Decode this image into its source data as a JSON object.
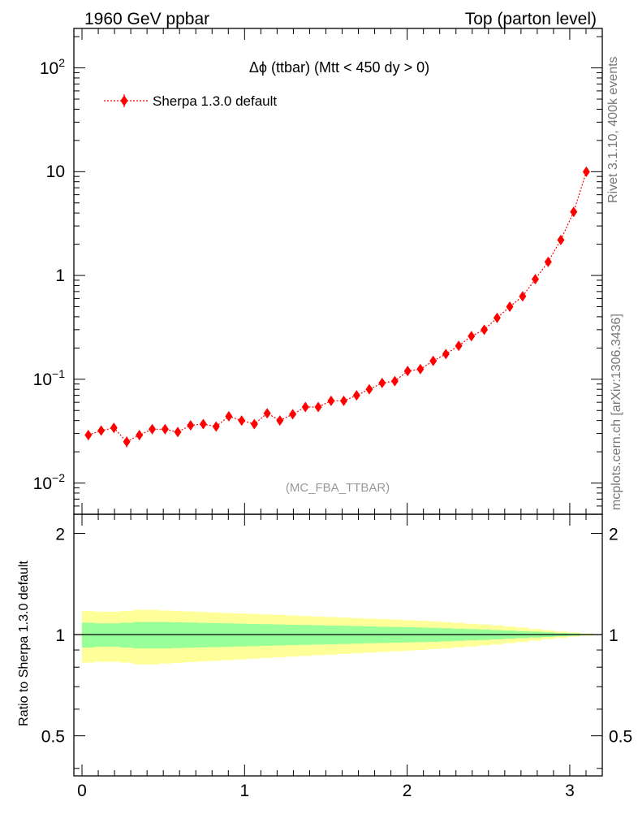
{
  "header": {
    "left": "1960 GeV ppbar",
    "right": "Top (parton level)"
  },
  "plot_title": "Δϕ (ttbar) (Mtt < 450 dy > 0)",
  "legend_label": "Sherpa 1.3.0 default",
  "analysis_tag": "(MC_FBA_TTBAR)",
  "side_texts": {
    "rivet": "Rivet 3.1.10,  400k events",
    "mcplots": "mcplots.cern.ch [arXiv:1306.3436]"
  },
  "ratio_ylabel": "Ratio to Sherpa 1.3.0 default",
  "colors": {
    "series": "#ff0000",
    "band_inner": "#99ff99",
    "band_outer": "#ffff99"
  },
  "chart_data": [
    {
      "type": "line",
      "title": "Δϕ (ttbar) (Mtt < 450 dy > 0)",
      "xlabel": "",
      "ylabel": "",
      "y_scale": "log",
      "xlim": [
        -0.05,
        3.2
      ],
      "ylim": [
        0.005,
        240
      ],
      "y_tick_labels": [
        "10^-2",
        "10^-1",
        "1",
        "10",
        "10^2"
      ],
      "legend": "top-left",
      "series": [
        {
          "name": "Sherpa 1.3.0 default",
          "x": [
            0.039,
            0.118,
            0.196,
            0.275,
            0.353,
            0.432,
            0.511,
            0.589,
            0.668,
            0.746,
            0.825,
            0.903,
            0.982,
            1.06,
            1.139,
            1.217,
            1.296,
            1.374,
            1.453,
            1.532,
            1.61,
            1.689,
            1.767,
            1.846,
            1.924,
            2.003,
            2.081,
            2.16,
            2.238,
            2.317,
            2.395,
            2.474,
            2.553,
            2.631,
            2.71,
            2.788,
            2.867,
            2.945,
            3.024,
            3.102
          ],
          "values": [
            0.029,
            0.032,
            0.034,
            0.025,
            0.029,
            0.033,
            0.033,
            0.031,
            0.036,
            0.037,
            0.035,
            0.044,
            0.04,
            0.037,
            0.047,
            0.04,
            0.046,
            0.054,
            0.054,
            0.062,
            0.062,
            0.07,
            0.08,
            0.092,
            0.096,
            0.12,
            0.125,
            0.15,
            0.175,
            0.21,
            0.26,
            0.3,
            0.39,
            0.5,
            0.63,
            0.92,
            1.35,
            2.2,
            4.1,
            10.0
          ],
          "errors": [
            0.003,
            0.003,
            0.003,
            0.003,
            0.003,
            0.003,
            0.003,
            0.003,
            0.003,
            0.003,
            0.003,
            0.004,
            0.003,
            0.003,
            0.004,
            0.003,
            0.003,
            0.004,
            0.004,
            0.004,
            0.004,
            0.004,
            0.005,
            0.005,
            0.005,
            0.006,
            0.006,
            0.007,
            0.007,
            0.008,
            0.009,
            0.009,
            0.011,
            0.012,
            0.014,
            0.018,
            0.024,
            0.035,
            0.06,
            0.11
          ]
        }
      ]
    },
    {
      "type": "area",
      "xlabel": "",
      "ylabel": "Ratio to Sherpa 1.3.0 default",
      "xlim": [
        -0.05,
        3.2
      ],
      "ylim": [
        0.38,
        2.28
      ],
      "x_ticks": [
        0,
        1,
        2,
        3
      ],
      "y_ticks": [
        0.5,
        1,
        2
      ],
      "reference_line": 1,
      "inner_band_halfwidth": [
        0.085,
        0.08,
        0.08,
        0.085,
        0.09,
        0.09,
        0.09,
        0.088,
        0.086,
        0.084,
        0.082,
        0.08,
        0.078,
        0.076,
        0.074,
        0.072,
        0.07,
        0.068,
        0.066,
        0.064,
        0.062,
        0.06,
        0.058,
        0.056,
        0.054,
        0.052,
        0.05,
        0.048,
        0.045,
        0.042,
        0.039,
        0.036,
        0.032,
        0.028,
        0.024,
        0.02,
        0.016,
        0.012,
        0.008,
        0.004
      ],
      "outer_band_halfwidth": [
        0.175,
        0.17,
        0.17,
        0.175,
        0.185,
        0.185,
        0.18,
        0.176,
        0.172,
        0.168,
        0.164,
        0.16,
        0.156,
        0.152,
        0.148,
        0.144,
        0.14,
        0.136,
        0.132,
        0.128,
        0.124,
        0.12,
        0.116,
        0.112,
        0.108,
        0.104,
        0.1,
        0.095,
        0.09,
        0.084,
        0.078,
        0.072,
        0.065,
        0.057,
        0.049,
        0.04,
        0.031,
        0.022,
        0.014,
        0.007
      ]
    }
  ]
}
